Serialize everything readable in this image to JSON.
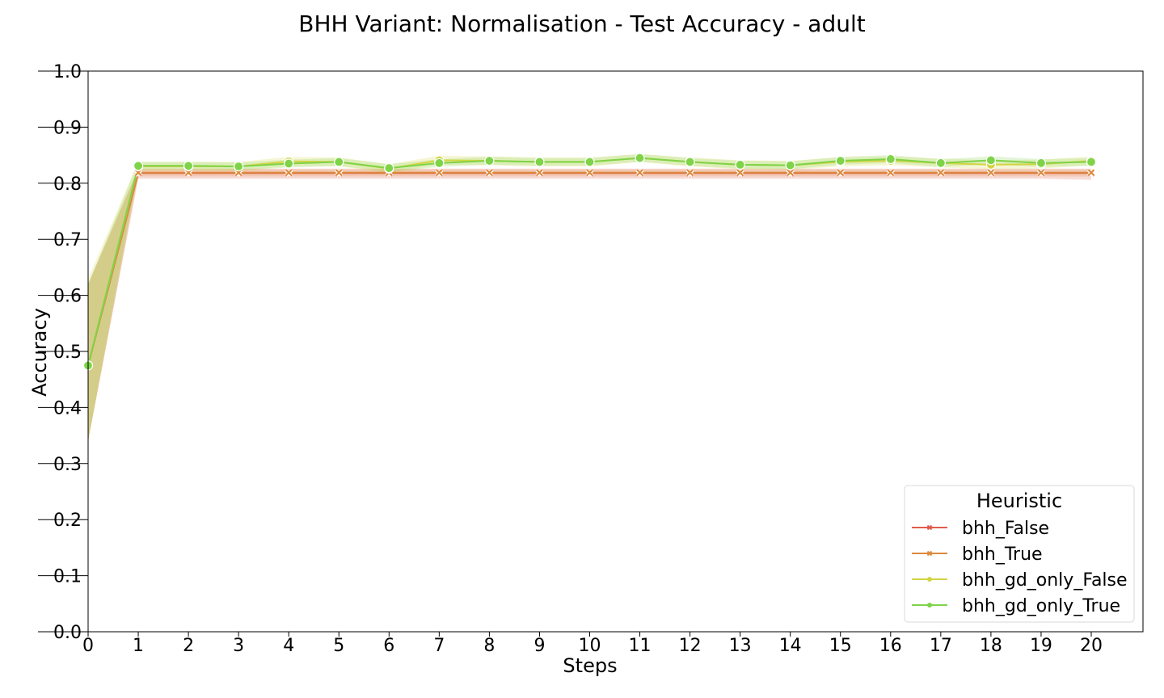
{
  "chart_data": {
    "type": "line",
    "title": "BHH Variant: Normalisation - Test Accuracy - adult",
    "xlabel": "Steps",
    "ylabel": "Accuracy",
    "xlim": [
      0,
      20
    ],
    "ylim": [
      0.0,
      1.0
    ],
    "x": [
      0,
      1,
      2,
      3,
      4,
      5,
      6,
      7,
      8,
      9,
      10,
      11,
      12,
      13,
      14,
      15,
      16,
      17,
      18,
      19,
      20
    ],
    "xticks": [
      "0",
      "1",
      "2",
      "3",
      "4",
      "5",
      "6",
      "7",
      "8",
      "9",
      "10",
      "11",
      "12",
      "13",
      "14",
      "15",
      "16",
      "17",
      "18",
      "19",
      "20"
    ],
    "yticks": [
      "0.0",
      "0.1",
      "0.2",
      "0.3",
      "0.4",
      "0.5",
      "0.6",
      "0.7",
      "0.8",
      "0.9",
      "1.0"
    ],
    "grid": false,
    "legend": {
      "title": "Heuristic",
      "placement": "bottom-right"
    },
    "series": [
      {
        "name": "bhh_False",
        "color": "#e05c4b",
        "marker": "x",
        "values": [
          0.475,
          0.818,
          0.818,
          0.818,
          0.818,
          0.818,
          0.818,
          0.818,
          0.818,
          0.818,
          0.818,
          0.818,
          0.818,
          0.818,
          0.818,
          0.818,
          0.818,
          0.818,
          0.818,
          0.818,
          0.818
        ],
        "lower": [
          0.34,
          0.808,
          0.808,
          0.808,
          0.808,
          0.808,
          0.808,
          0.808,
          0.808,
          0.808,
          0.808,
          0.808,
          0.808,
          0.808,
          0.808,
          0.808,
          0.808,
          0.808,
          0.808,
          0.808,
          0.806
        ],
        "upper": [
          0.62,
          0.826,
          0.826,
          0.826,
          0.826,
          0.826,
          0.826,
          0.826,
          0.826,
          0.826,
          0.826,
          0.826,
          0.826,
          0.826,
          0.826,
          0.826,
          0.826,
          0.826,
          0.826,
          0.826,
          0.826
        ]
      },
      {
        "name": "bhh_True",
        "color": "#dd8a3e",
        "marker": "x",
        "values": [
          0.475,
          0.819,
          0.819,
          0.819,
          0.819,
          0.819,
          0.819,
          0.819,
          0.819,
          0.819,
          0.819,
          0.819,
          0.819,
          0.819,
          0.819,
          0.819,
          0.819,
          0.819,
          0.819,
          0.819,
          0.819
        ],
        "lower": [
          0.34,
          0.812,
          0.812,
          0.812,
          0.812,
          0.812,
          0.812,
          0.812,
          0.812,
          0.812,
          0.812,
          0.812,
          0.812,
          0.812,
          0.812,
          0.812,
          0.812,
          0.812,
          0.812,
          0.812,
          0.812
        ],
        "upper": [
          0.62,
          0.825,
          0.825,
          0.825,
          0.825,
          0.825,
          0.825,
          0.825,
          0.825,
          0.825,
          0.825,
          0.825,
          0.825,
          0.825,
          0.825,
          0.825,
          0.825,
          0.825,
          0.825,
          0.825,
          0.825
        ]
      },
      {
        "name": "bhh_gd_only_False",
        "color": "#d4d444",
        "marker": "o",
        "values": [
          0.475,
          0.83,
          0.83,
          0.83,
          0.839,
          0.838,
          0.826,
          0.841,
          0.84,
          0.838,
          0.838,
          0.845,
          0.838,
          0.833,
          0.832,
          0.838,
          0.84,
          0.836,
          0.833,
          0.834,
          0.84
        ],
        "lower": [
          0.34,
          0.822,
          0.822,
          0.822,
          0.83,
          0.83,
          0.818,
          0.833,
          0.832,
          0.83,
          0.83,
          0.838,
          0.83,
          0.825,
          0.824,
          0.83,
          0.832,
          0.828,
          0.825,
          0.826,
          0.832
        ],
        "upper": [
          0.63,
          0.838,
          0.838,
          0.838,
          0.847,
          0.846,
          0.834,
          0.849,
          0.848,
          0.846,
          0.846,
          0.852,
          0.846,
          0.841,
          0.84,
          0.846,
          0.848,
          0.844,
          0.841,
          0.842,
          0.848
        ]
      },
      {
        "name": "bhh_gd_only_True",
        "color": "#7ed348",
        "marker": "o",
        "values": [
          0.475,
          0.831,
          0.831,
          0.83,
          0.835,
          0.838,
          0.827,
          0.836,
          0.84,
          0.838,
          0.838,
          0.845,
          0.838,
          0.833,
          0.832,
          0.84,
          0.843,
          0.836,
          0.841,
          0.836,
          0.838
        ],
        "lower": [
          0.34,
          0.824,
          0.824,
          0.823,
          0.828,
          0.831,
          0.82,
          0.829,
          0.833,
          0.831,
          0.831,
          0.838,
          0.831,
          0.826,
          0.825,
          0.833,
          0.836,
          0.829,
          0.834,
          0.829,
          0.831
        ],
        "upper": [
          0.62,
          0.838,
          0.838,
          0.837,
          0.842,
          0.845,
          0.834,
          0.843,
          0.847,
          0.845,
          0.845,
          0.852,
          0.845,
          0.84,
          0.839,
          0.847,
          0.85,
          0.843,
          0.848,
          0.843,
          0.845
        ]
      }
    ]
  }
}
